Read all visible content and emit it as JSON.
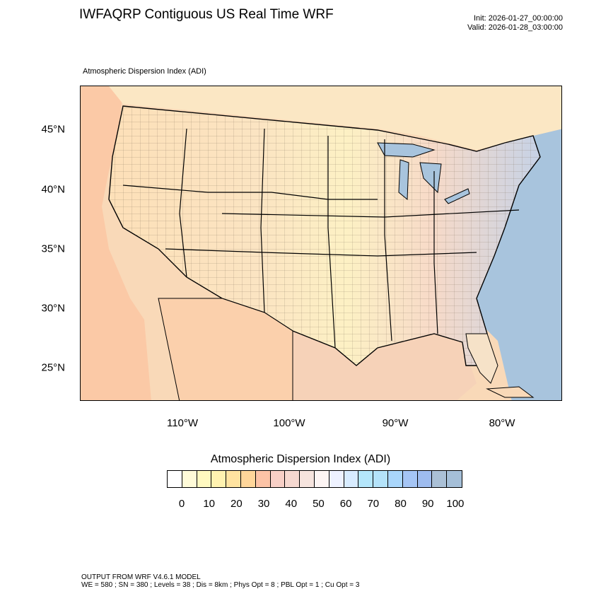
{
  "title": "IWFAQRP Contiguous US Real Time WRF",
  "init": "Init: 2026-01-27_00:00:00",
  "valid": "Valid: 2026-01-28_03:00:00",
  "map_subtitle": "Atmospheric Dispersion Index   (ADI)",
  "lat_labels": [
    "45°N",
    "40°N",
    "35°N",
    "30°N",
    "25°N"
  ],
  "lon_labels": [
    "110°W",
    "100°W",
    "90°W",
    "80°W"
  ],
  "legend": {
    "title": "Atmospheric Dispersion Index  (ADI)",
    "labels": [
      "0",
      "10",
      "20",
      "30",
      "40",
      "50",
      "60",
      "70",
      "80",
      "90",
      "100"
    ],
    "colors": [
      "#ffffff",
      "#fffbd8",
      "#fff9c0",
      "#fff2b0",
      "#ffe3a0",
      "#ffd69a",
      "#fcc3a6",
      "#f7cfc6",
      "#f6d8d0",
      "#f6e4de",
      "#fdf5f4",
      "#eef2ff",
      "#d8ecff",
      "#b4e6fb",
      "#b4e3fa",
      "#a9d6fb",
      "#a5c5f5",
      "#9ebcef",
      "#aac0d6",
      "#a5bfd8"
    ]
  },
  "footer": {
    "line1": "OUTPUT FROM WRF V4.6.1 MODEL",
    "line2": "WE = 580 ; SN = 380 ; Levels = 38 ; Dis = 8km ; Phys Opt = 8 ; PBL Opt = 1 ; Cu Opt = 3"
  },
  "colors": {
    "ocean": "#a8c4dd",
    "land_low": "#fff3b8",
    "land_high": "#f3c0a4"
  }
}
